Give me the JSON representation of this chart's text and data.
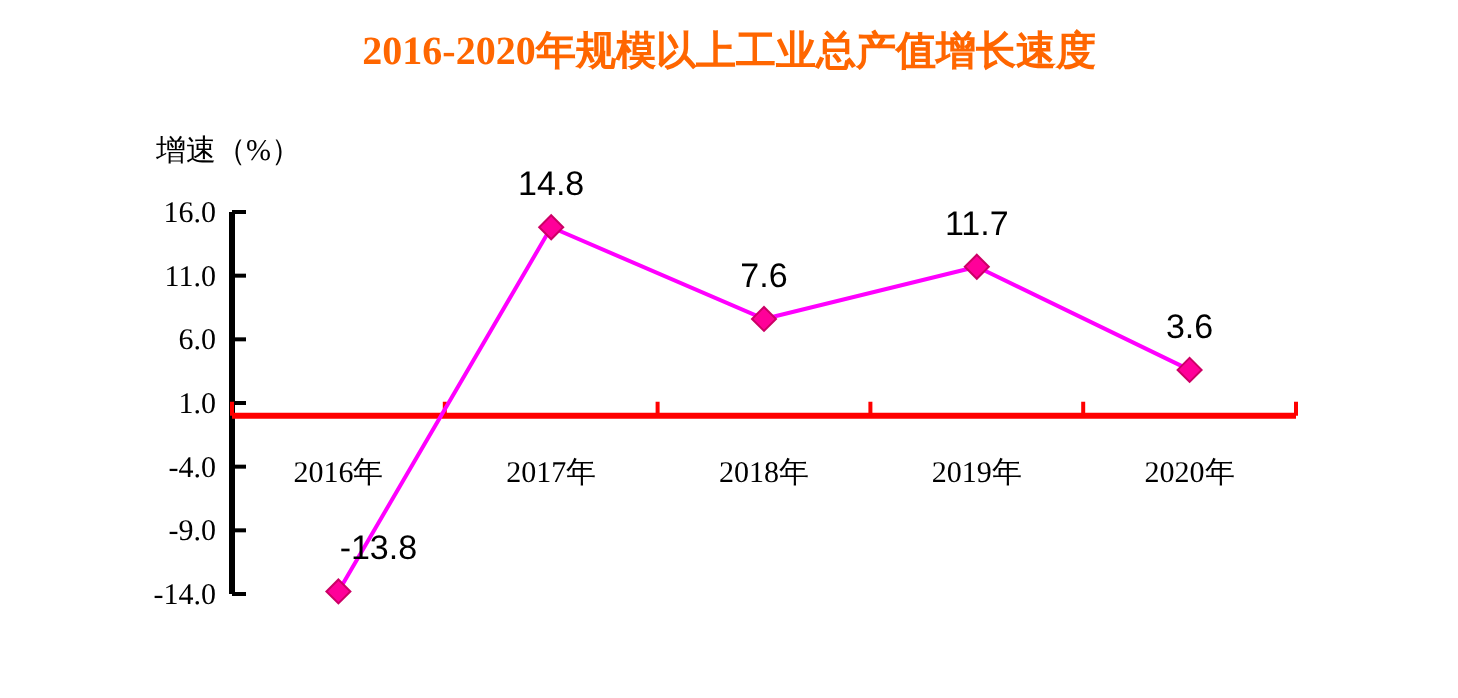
{
  "chart_data": {
    "type": "line",
    "title": "2016-2020年规模以上工业总产值增长速度",
    "ylabel": "增速（%）",
    "categories": [
      "2016年",
      "2017年",
      "2018年",
      "2019年",
      "2020年"
    ],
    "series": [
      {
        "color": "#ff00ff",
        "values": [
          -13.8,
          14.8,
          7.6,
          11.7,
          3.6
        ]
      }
    ],
    "ylim": [
      -14,
      16
    ],
    "yticks": [
      {
        "value": 16,
        "label": "16.0"
      },
      {
        "value": 11,
        "label": "11.0"
      },
      {
        "value": 6,
        "label": "6.0"
      },
      {
        "value": 1,
        "label": "1.0"
      },
      {
        "value": -4,
        "label": "-4.0"
      },
      {
        "value": -9,
        "label": "-9.0"
      },
      {
        "value": -14,
        "label": "-14.0"
      }
    ],
    "data_labels": true,
    "marker": "diamond",
    "line_style": "solid",
    "grid": false
  }
}
